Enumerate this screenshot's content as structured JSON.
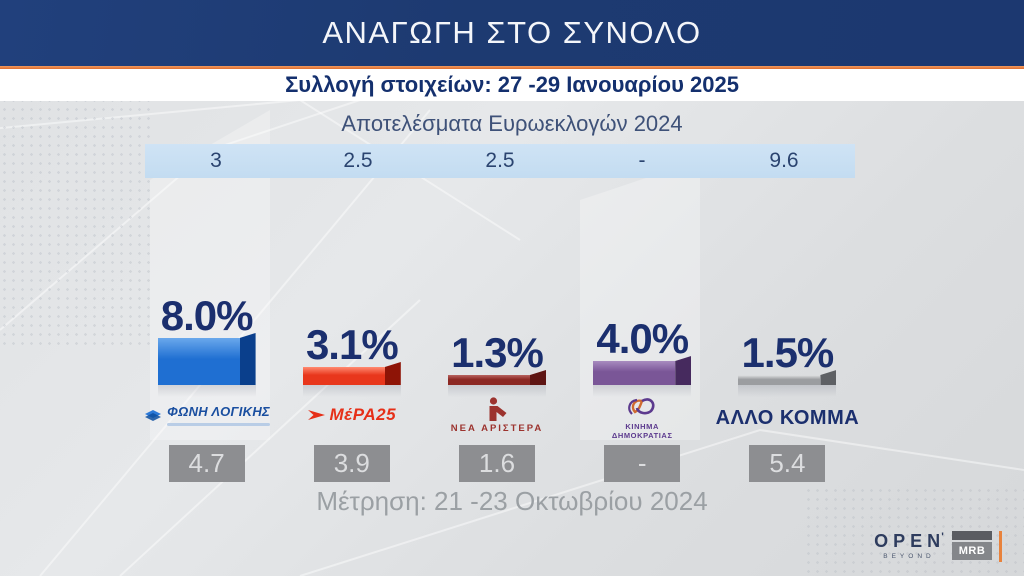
{
  "header": {
    "title": "ΑΝΑΓΩΓΗ ΣΤΟ ΣΥΝΟΛΟ",
    "subtitle": "Συλλογή στοιχείων: 27 -29 Ιανουαρίου 2025"
  },
  "euro_row": {
    "title": "Αποτελέσματα Ευρωεκλογών 2024",
    "values": [
      "3",
      "2.5",
      "2.5",
      "-",
      "9.6"
    ]
  },
  "parties": [
    {
      "name": "ΦΩΝΗ ΛΟΓΙΚΗΣ",
      "pct_label": "8.0%",
      "euro_2024": "3",
      "oct_2024": "4.7",
      "color": "#1f6fd2",
      "color_light": "#6aa8ec",
      "color_dark": "#0a3f8c"
    },
    {
      "name": "ΜέΡΑ25",
      "pct_label": "3.1%",
      "euro_2024": "2.5",
      "oct_2024": "3.9",
      "color": "#e8371c",
      "color_light": "#ff8a70",
      "color_dark": "#8e1406"
    },
    {
      "name": "ΝΕΑ ΑΡΙΣΤΕΡΑ",
      "pct_label": "1.3%",
      "euro_2024": "2.5",
      "oct_2024": "1.6",
      "color": "#8c2823",
      "color_light": "#b86460",
      "color_dark": "#5e1513"
    },
    {
      "name": "ΚΙΝΗΜΑ ΔΗΜΟΚΡΑΤΙΑΣ",
      "pct_label": "4.0%",
      "euro_2024": "-",
      "oct_2024": "-",
      "color": "#7a5697",
      "color_light": "#a88cc0",
      "color_dark": "#462a5e"
    },
    {
      "name": "ΑΛΛΟ ΚΟΜΜΑ",
      "pct_label": "1.5%",
      "euro_2024": "9.6",
      "oct_2024": "5.4",
      "color": "#9b9da0",
      "color_light": "#e2e3e4",
      "color_dark": "#5e6064"
    }
  ],
  "footer": {
    "note": "Μέτρηση: 21 -23 Οκτωβρίου 2024"
  },
  "logos": {
    "open_text": "OPEN",
    "open_sub": "BEYOND",
    "mrb_text": "MRB"
  },
  "colors": {
    "header_bg": "#1d3a71",
    "accent_orange": "#e8823c",
    "percent_text": "#1b2f6e",
    "euro_band_bg": "#c6def2",
    "value_box_bg": "#8d8e91",
    "note_text": "#9ba0a4"
  },
  "chart_data": {
    "type": "bar",
    "title": "ΑΝΑΓΩΓΗ ΣΤΟ ΣΥΝΟΛΟ",
    "subtitle": "Συλλογή στοιχείων: 27 -29 Ιανουαρίου 2025",
    "categories": [
      "ΦΩΝΗ ΛΟΓΙΚΗΣ",
      "ΜέΡΑ25",
      "ΝΕΑ ΑΡΙΣΤΕΡΑ",
      "ΚΙΝΗΜΑ ΔΗΜΟΚΡΑΤΙΑΣ",
      "ΑΛΛΟ ΚΟΜΜΑ"
    ],
    "series": [
      {
        "name": "Αναγωγή στο σύνολο (27 -29 Ιανουαρίου 2025)",
        "values": [
          8.0,
          3.1,
          1.3,
          4.0,
          1.5
        ]
      },
      {
        "name": "Αποτελέσματα Ευρωεκλογών 2024",
        "values": [
          3,
          2.5,
          2.5,
          null,
          9.6
        ]
      },
      {
        "name": "Μέτρηση 21 -23 Οκτωβρίου 2024",
        "values": [
          4.7,
          3.9,
          1.6,
          null,
          5.4
        ]
      }
    ],
    "bar_colors": [
      "#1f6fd2",
      "#e8371c",
      "#8c2823",
      "#7a5697",
      "#9b9da0"
    ],
    "ylim": [
      0,
      9
    ],
    "grid": false,
    "legend_position": "none",
    "value_labels": [
      "8.0%",
      "3.1%",
      "1.3%",
      "4.0%",
      "1.5%"
    ]
  }
}
